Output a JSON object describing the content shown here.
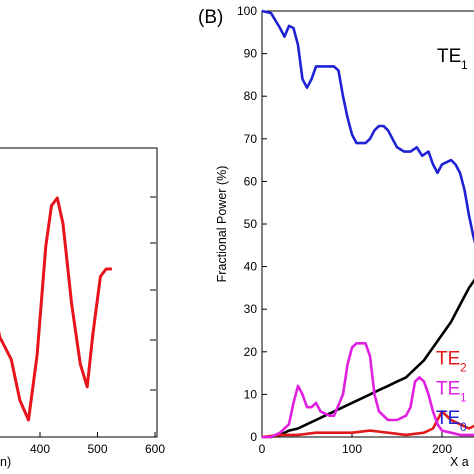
{
  "panel_label": "(B)",
  "chart_data": [
    {
      "type": "line",
      "panel": "left (partial)",
      "xlabel": "n)",
      "ylabel": "",
      "xlim": [
        285,
        600
      ],
      "xticks": [
        400,
        500,
        600
      ],
      "grid": false,
      "series": [
        {
          "color": "#e8141c",
          "points": [
            [
              285,
              205
            ],
            [
              300,
              198
            ],
            [
              312,
              216
            ],
            [
              330,
              250
            ],
            [
              350,
              265
            ],
            [
              365,
              292
            ],
            [
              380,
              305
            ],
            [
              395,
              262
            ],
            [
              410,
              190
            ],
            [
              420,
              163
            ],
            [
              430,
              158
            ],
            [
              440,
              175
            ],
            [
              455,
              228
            ],
            [
              470,
              268
            ],
            [
              482,
              283
            ],
            [
              492,
              248
            ],
            [
              505,
              210
            ],
            [
              515,
              205
            ],
            [
              525,
              205
            ]
          ]
        }
      ]
    },
    {
      "type": "line",
      "panel": "B",
      "xlabel": "X a",
      "ylabel": "Fractional Power (%)",
      "xlim": [
        0,
        300
      ],
      "ylim": [
        0,
        100
      ],
      "xticks": [
        0,
        100,
        200
      ],
      "yticks": [
        0,
        10,
        20,
        30,
        40,
        50,
        60,
        70,
        80,
        90,
        100
      ],
      "grid": false,
      "series": [
        {
          "color": "#1f22d4",
          "points": [
            [
              0,
              100
            ],
            [
              10,
              99.5
            ],
            [
              20,
              96
            ],
            [
              25,
              94
            ],
            [
              30,
              96.5
            ],
            [
              35,
              96
            ],
            [
              40,
              92
            ],
            [
              45,
              84
            ],
            [
              50,
              82
            ],
            [
              55,
              84
            ],
            [
              60,
              87
            ],
            [
              70,
              87
            ],
            [
              80,
              87
            ],
            [
              85,
              86
            ],
            [
              90,
              80
            ],
            [
              95,
              75
            ],
            [
              100,
              71
            ],
            [
              105,
              69
            ],
            [
              115,
              69
            ],
            [
              120,
              70
            ],
            [
              125,
              72
            ],
            [
              130,
              73
            ],
            [
              135,
              73
            ],
            [
              140,
              72
            ],
            [
              150,
              68
            ],
            [
              158,
              67
            ],
            [
              165,
              67
            ],
            [
              172,
              68
            ],
            [
              178,
              66
            ],
            [
              185,
              67
            ],
            [
              190,
              64
            ],
            [
              195,
              62
            ],
            [
              200,
              64
            ],
            [
              210,
              65
            ],
            [
              215,
              64
            ],
            [
              220,
              62
            ],
            [
              225,
              58
            ],
            [
              230,
              52
            ],
            [
              235,
              47
            ],
            [
              240,
              43
            ],
            [
              245,
              41
            ],
            [
              255,
              41
            ],
            [
              260,
              41
            ],
            [
              265,
              41
            ]
          ]
        },
        {
          "color": "#000000",
          "points": [
            [
              0,
              0
            ],
            [
              10,
              0
            ],
            [
              20,
              0.5
            ],
            [
              30,
              1.5
            ],
            [
              40,
              2
            ],
            [
              50,
              3
            ],
            [
              60,
              4
            ],
            [
              70,
              5
            ],
            [
              80,
              6
            ],
            [
              90,
              7
            ],
            [
              100,
              8
            ],
            [
              110,
              9
            ],
            [
              120,
              10
            ],
            [
              130,
              11
            ],
            [
              140,
              12
            ],
            [
              150,
              13
            ],
            [
              160,
              14
            ],
            [
              170,
              16
            ],
            [
              180,
              18
            ],
            [
              190,
              21
            ],
            [
              200,
              24
            ],
            [
              210,
              27
            ],
            [
              220,
              31
            ],
            [
              230,
              35
            ],
            [
              240,
              38
            ],
            [
              250,
              40
            ],
            [
              260,
              41
            ],
            [
              265,
              41
            ]
          ]
        },
        {
          "color": "#e01a1a",
          "points": [
            [
              0,
              0
            ],
            [
              20,
              0.5
            ],
            [
              40,
              0.5
            ],
            [
              60,
              1
            ],
            [
              80,
              1
            ],
            [
              100,
              1
            ],
            [
              120,
              1.5
            ],
            [
              140,
              1
            ],
            [
              160,
              0.5
            ],
            [
              180,
              1
            ],
            [
              190,
              2
            ],
            [
              200,
              6
            ],
            [
              210,
              4
            ],
            [
              220,
              3
            ],
            [
              230,
              2
            ],
            [
              240,
              3
            ],
            [
              250,
              4
            ],
            [
              265,
              3
            ]
          ]
        },
        {
          "color": "#e020e0",
          "points": [
            [
              0,
              0
            ],
            [
              10,
              0
            ],
            [
              20,
              1
            ],
            [
              30,
              3
            ],
            [
              35,
              8
            ],
            [
              40,
              12
            ],
            [
              45,
              10
            ],
            [
              50,
              7
            ],
            [
              55,
              7
            ],
            [
              60,
              8
            ],
            [
              65,
              6
            ],
            [
              75,
              5
            ],
            [
              80,
              5
            ],
            [
              90,
              10
            ],
            [
              95,
              17
            ],
            [
              100,
              21
            ],
            [
              105,
              22
            ],
            [
              115,
              22
            ],
            [
              120,
              19
            ],
            [
              125,
              10
            ],
            [
              130,
              6
            ],
            [
              140,
              4
            ],
            [
              150,
              4
            ],
            [
              160,
              5
            ],
            [
              165,
              7
            ],
            [
              170,
              13
            ],
            [
              175,
              14
            ],
            [
              180,
              13
            ],
            [
              185,
              10
            ],
            [
              190,
              6
            ],
            [
              195,
              3
            ],
            [
              200,
              1.5
            ],
            [
              210,
              1
            ],
            [
              220,
              0.5
            ],
            [
              240,
              0.5
            ],
            [
              265,
              0.5
            ]
          ]
        }
      ]
    }
  ],
  "annotations": [
    {
      "text": "TE",
      "sub": "1",
      "color": "#000000",
      "x": 265,
      "y": 88
    },
    {
      "text": "TE",
      "sub": "2",
      "color": "#e01a1a",
      "x": 265,
      "y": 17
    },
    {
      "text": "TE",
      "sub": "1",
      "color": "#e020e0",
      "x": 265,
      "y": 10
    },
    {
      "text": "TE",
      "sub": "0",
      "color": "#1f22d4",
      "x": 265,
      "y": 3
    }
  ]
}
